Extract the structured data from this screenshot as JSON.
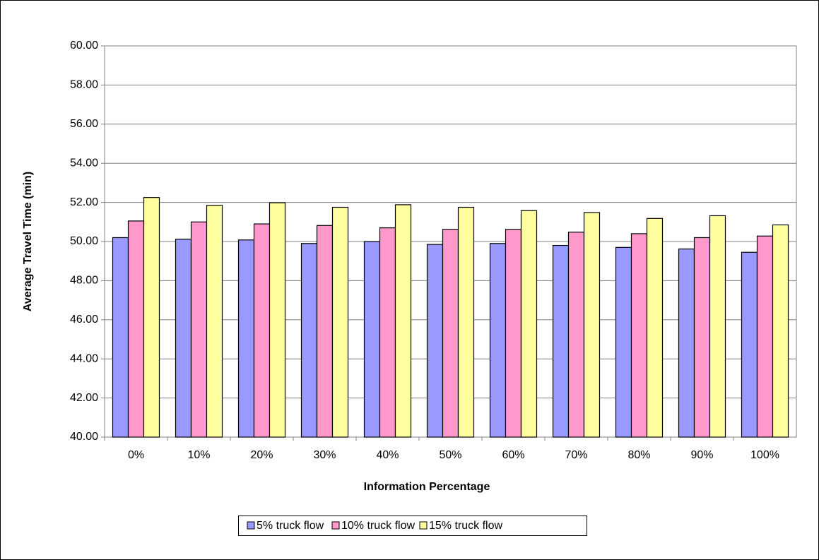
{
  "chart_data": {
    "type": "bar",
    "y_label": "Average Travel Time (min)",
    "x_label": "Information Percentage",
    "categories": [
      "0%",
      "10%",
      "20%",
      "30%",
      "40%",
      "50%",
      "60%",
      "70%",
      "80%",
      "90%",
      "100%"
    ],
    "series": [
      {
        "name": "5% truck flow",
        "color": "#9999ff",
        "values": [
          50.2,
          50.12,
          50.08,
          49.9,
          50.0,
          49.85,
          49.9,
          49.8,
          49.7,
          49.62,
          49.45
        ]
      },
      {
        "name": "10% truck flow",
        "color": "#ff99cc",
        "values": [
          51.05,
          51.0,
          50.9,
          50.82,
          50.7,
          50.62,
          50.62,
          50.48,
          50.4,
          50.2,
          50.28
        ]
      },
      {
        "name": "15% truck flow",
        "color": "#ffffa0",
        "values": [
          52.25,
          51.85,
          51.98,
          51.75,
          51.88,
          51.75,
          51.58,
          51.48,
          51.18,
          51.32,
          50.85
        ]
      }
    ],
    "ylim": [
      40,
      60
    ],
    "yticks": [
      {
        "value": 40,
        "label": "40.00"
      },
      {
        "value": 42,
        "label": "42.00"
      },
      {
        "value": 44,
        "label": "44.00"
      },
      {
        "value": 46,
        "label": "46.00"
      },
      {
        "value": 48,
        "label": "48.00"
      },
      {
        "value": 50,
        "label": "50.00"
      },
      {
        "value": 52,
        "label": "52.00"
      },
      {
        "value": 54,
        "label": "54.00"
      },
      {
        "value": 56,
        "label": "56.00"
      },
      {
        "value": 58,
        "label": "58.00"
      },
      {
        "value": 60,
        "label": "60.00"
      }
    ],
    "grid": true,
    "legend": "bottom"
  }
}
